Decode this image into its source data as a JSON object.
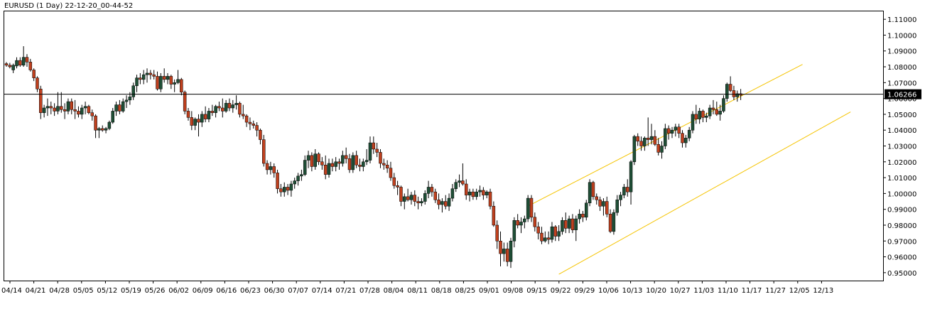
{
  "window": {
    "title": "EURUSD (1 Day) 22-12-20_00-44-52"
  },
  "colors": {
    "bull": "#1f4f36",
    "bear": "#c0401e",
    "wick": "#000000",
    "channel": "#f5c400",
    "hline": "#000000",
    "price_tag_bg": "#000000",
    "background": "#ffffff"
  },
  "chart_data": {
    "type": "candlestick",
    "symbol": "EURUSD",
    "timeframe": "1 Day",
    "ylim": [
      0.945,
      1.115
    ],
    "y_ticks": [
      "1.11000",
      "1.10000",
      "1.09000",
      "1.08000",
      "1.07000",
      "1.06000",
      "1.05000",
      "1.04000",
      "1.03000",
      "1.02000",
      "1.01000",
      "1.00000",
      "0.99000",
      "0.98000",
      "0.97000",
      "0.96000",
      "0.95000"
    ],
    "current_price": "1.06266",
    "current_price_value": 1.06266,
    "x_tick_labels": [
      "04/14",
      "04/21",
      "04/28",
      "05/05",
      "05/12",
      "05/19",
      "05/26",
      "06/02",
      "06/09",
      "06/16",
      "06/23",
      "06/30",
      "07/07",
      "07/14",
      "07/21",
      "07/28",
      "08/04",
      "08/11",
      "08/18",
      "08/25",
      "09/01",
      "09/08",
      "09/15",
      "09/22",
      "09/29",
      "10/06",
      "10/13",
      "10/20",
      "10/27",
      "11/03",
      "11/10",
      "11/17",
      "11/27",
      "12/05",
      "12/13"
    ],
    "channel_lines": [
      {
        "name": "upper",
        "from": {
          "bar": 152,
          "price": 0.992
        },
        "to": {
          "bar": 232,
          "price": 1.0815
        }
      },
      {
        "name": "lower",
        "from": {
          "bar": 161,
          "price": 0.949
        },
        "to": {
          "bar": 246,
          "price": 1.0515
        }
      }
    ],
    "candles": [
      [
        1.082,
        1.083,
        1.08,
        1.081
      ],
      [
        1.081,
        1.0825,
        1.079,
        1.08
      ],
      [
        1.078,
        1.082,
        1.076,
        1.081
      ],
      [
        1.0805,
        1.086,
        1.079,
        1.084
      ],
      [
        1.084,
        1.086,
        1.08,
        1.081
      ],
      [
        1.081,
        1.093,
        1.08,
        1.086
      ],
      [
        1.086,
        1.088,
        1.08,
        1.083
      ],
      [
        1.083,
        1.085,
        1.077,
        1.078
      ],
      [
        1.078,
        1.079,
        1.071,
        1.073
      ],
      [
        1.073,
        1.074,
        1.064,
        1.066
      ],
      [
        1.066,
        1.068,
        1.047,
        1.051
      ],
      [
        1.051,
        1.056,
        1.048,
        1.054
      ],
      [
        1.054,
        1.06,
        1.049,
        1.055
      ],
      [
        1.055,
        1.058,
        1.05,
        1.054
      ],
      [
        1.054,
        1.057,
        1.049,
        1.052
      ],
      [
        1.052,
        1.064,
        1.05,
        1.055
      ],
      [
        1.055,
        1.064,
        1.051,
        1.053
      ],
      [
        1.053,
        1.057,
        1.047,
        1.052
      ],
      [
        1.052,
        1.06,
        1.05,
        1.058
      ],
      [
        1.058,
        1.06,
        1.05,
        1.053
      ],
      [
        1.053,
        1.059,
        1.047,
        1.052
      ],
      [
        1.052,
        1.055,
        1.048,
        1.05
      ],
      [
        1.05,
        1.056,
        1.047,
        1.054
      ],
      [
        1.054,
        1.058,
        1.05,
        1.055
      ],
      [
        1.055,
        1.056,
        1.05,
        1.051
      ],
      [
        1.051,
        1.053,
        1.046,
        1.049
      ],
      [
        1.049,
        1.05,
        1.035,
        1.04
      ],
      [
        1.04,
        1.042,
        1.035,
        1.041
      ],
      [
        1.041,
        1.043,
        1.039,
        1.04
      ],
      [
        1.04,
        1.042,
        1.038,
        1.041
      ],
      [
        1.041,
        1.046,
        1.04,
        1.045
      ],
      [
        1.045,
        1.054,
        1.044,
        1.052
      ],
      [
        1.052,
        1.058,
        1.049,
        1.056
      ],
      [
        1.056,
        1.059,
        1.05,
        1.052
      ],
      [
        1.052,
        1.06,
        1.051,
        1.058
      ],
      [
        1.058,
        1.062,
        1.054,
        1.059
      ],
      [
        1.059,
        1.064,
        1.056,
        1.061
      ],
      [
        1.061,
        1.07,
        1.059,
        1.068
      ],
      [
        1.068,
        1.075,
        1.064,
        1.073
      ],
      [
        1.073,
        1.076,
        1.069,
        1.072
      ],
      [
        1.072,
        1.078,
        1.069,
        1.075
      ],
      [
        1.075,
        1.079,
        1.07,
        1.076
      ],
      [
        1.076,
        1.078,
        1.072,
        1.075
      ],
      [
        1.075,
        1.078,
        1.072,
        1.074
      ],
      [
        1.074,
        1.077,
        1.065,
        1.066
      ],
      [
        1.066,
        1.076,
        1.064,
        1.074
      ],
      [
        1.074,
        1.079,
        1.07,
        1.072
      ],
      [
        1.072,
        1.076,
        1.069,
        1.074
      ],
      [
        1.074,
        1.075,
        1.066,
        1.069
      ],
      [
        1.069,
        1.072,
        1.064,
        1.07
      ],
      [
        1.07,
        1.078,
        1.069,
        1.072
      ],
      [
        1.072,
        1.073,
        1.062,
        1.064
      ],
      [
        1.064,
        1.065,
        1.05,
        1.052
      ],
      [
        1.052,
        1.054,
        1.046,
        1.048
      ],
      [
        1.048,
        1.052,
        1.04,
        1.043
      ],
      [
        1.043,
        1.048,
        1.04,
        1.047
      ],
      [
        1.047,
        1.05,
        1.036,
        1.045
      ],
      [
        1.045,
        1.052,
        1.042,
        1.05
      ],
      [
        1.05,
        1.055,
        1.045,
        1.047
      ],
      [
        1.047,
        1.054,
        1.045,
        1.052
      ],
      [
        1.052,
        1.056,
        1.049,
        1.051
      ],
      [
        1.051,
        1.056,
        1.048,
        1.055
      ],
      [
        1.055,
        1.058,
        1.052,
        1.054
      ],
      [
        1.054,
        1.06,
        1.048,
        1.052
      ],
      [
        1.052,
        1.059,
        1.051,
        1.057
      ],
      [
        1.057,
        1.06,
        1.052,
        1.054
      ],
      [
        1.054,
        1.059,
        1.051,
        1.056
      ],
      [
        1.056,
        1.062,
        1.053,
        1.057
      ],
      [
        1.057,
        1.058,
        1.048,
        1.05
      ],
      [
        1.05,
        1.056,
        1.047,
        1.049
      ],
      [
        1.049,
        1.05,
        1.042,
        1.045
      ],
      [
        1.045,
        1.048,
        1.04,
        1.044
      ],
      [
        1.044,
        1.046,
        1.041,
        1.043
      ],
      [
        1.043,
        1.045,
        1.036,
        1.04
      ],
      [
        1.04,
        1.041,
        1.031,
        1.034
      ],
      [
        1.034,
        1.037,
        1.017,
        1.019
      ],
      [
        1.019,
        1.021,
        1.012,
        1.015
      ],
      [
        1.015,
        1.02,
        1.012,
        1.017
      ],
      [
        1.017,
        1.019,
        1.01,
        1.013
      ],
      [
        1.013,
        1.015,
        1.0,
        1.003
      ],
      [
        1.003,
        1.006,
        0.998,
        1.001
      ],
      [
        1.001,
        1.007,
        0.998,
        1.004
      ],
      [
        1.004,
        1.006,
        0.999,
        1.002
      ],
      [
        1.002,
        1.008,
        0.998,
        1.006
      ],
      [
        1.006,
        1.01,
        1.003,
        1.008
      ],
      [
        1.008,
        1.013,
        1.005,
        1.011
      ],
      [
        1.011,
        1.015,
        1.008,
        1.012
      ],
      [
        1.012,
        1.024,
        1.011,
        1.021
      ],
      [
        1.021,
        1.027,
        1.016,
        1.024
      ],
      [
        1.024,
        1.026,
        1.014,
        1.017
      ],
      [
        1.017,
        1.028,
        1.015,
        1.025
      ],
      [
        1.025,
        1.026,
        1.018,
        1.02
      ],
      [
        1.02,
        1.023,
        1.015,
        1.018
      ],
      [
        1.018,
        1.024,
        1.009,
        1.012
      ],
      [
        1.012,
        1.022,
        1.01,
        1.019
      ],
      [
        1.019,
        1.022,
        1.014,
        1.017
      ],
      [
        1.017,
        1.023,
        1.014,
        1.02
      ],
      [
        1.02,
        1.022,
        1.015,
        1.019
      ],
      [
        1.019,
        1.027,
        1.017,
        1.024
      ],
      [
        1.024,
        1.029,
        1.019,
        1.022
      ],
      [
        1.022,
        1.025,
        1.013,
        1.015
      ],
      [
        1.015,
        1.026,
        1.013,
        1.024
      ],
      [
        1.024,
        1.027,
        1.016,
        1.018
      ],
      [
        1.018,
        1.022,
        1.014,
        1.017
      ],
      [
        1.017,
        1.022,
        1.014,
        1.02
      ],
      [
        1.02,
        1.028,
        1.018,
        1.021
      ],
      [
        1.021,
        1.036,
        1.019,
        1.032
      ],
      [
        1.032,
        1.036,
        1.025,
        1.028
      ],
      [
        1.028,
        1.032,
        1.023,
        1.026
      ],
      [
        1.026,
        1.028,
        1.016,
        1.019
      ],
      [
        1.019,
        1.022,
        1.015,
        1.018
      ],
      [
        1.018,
        1.021,
        1.013,
        1.016
      ],
      [
        1.016,
        1.02,
        1.008,
        1.01
      ],
      [
        1.01,
        1.013,
        1.003,
        1.005
      ],
      [
        1.005,
        1.008,
        0.999,
        1.004
      ],
      [
        1.004,
        1.005,
        0.992,
        0.995
      ],
      [
        0.995,
        1.0,
        0.99,
        0.998
      ],
      [
        0.998,
        1.003,
        0.995,
        0.996
      ],
      [
        0.996,
        1.001,
        0.993,
        0.999
      ],
      [
        0.999,
        1.002,
        0.992,
        0.995
      ],
      [
        0.995,
        0.998,
        0.99,
        0.994
      ],
      [
        0.994,
        0.997,
        0.992,
        0.995
      ],
      [
        0.995,
        1.002,
        0.993,
        1.0
      ],
      [
        1.0,
        1.008,
        0.997,
        1.004
      ],
      [
        1.004,
        1.006,
        0.998,
        1.001
      ],
      [
        1.001,
        1.003,
        0.994,
        0.996
      ],
      [
        0.996,
        1.0,
        0.99,
        0.993
      ],
      [
        0.993,
        0.997,
        0.988,
        0.995
      ],
      [
        0.995,
        0.999,
        0.99,
        0.992
      ],
      [
        0.992,
        1.0,
        0.989,
        0.997
      ],
      [
        0.997,
        1.006,
        0.995,
        1.003
      ],
      [
        1.003,
        1.009,
        1.001,
        1.007
      ],
      [
        1.007,
        1.012,
        1.004,
        1.008
      ],
      [
        1.008,
        1.019,
        1.005,
        1.006
      ],
      [
        1.006,
        1.009,
        0.996,
        0.999
      ],
      [
        0.999,
        1.003,
        0.995,
        1.001
      ],
      [
        1.001,
        1.003,
        0.996,
        0.998
      ],
      [
        0.998,
        1.003,
        0.996,
        1.001
      ],
      [
        1.001,
        1.005,
        0.998,
        1.002
      ],
      [
        1.002,
        1.004,
        0.996,
        0.999
      ],
      [
        0.999,
        1.002,
        0.997,
        1.001
      ],
      [
        1.001,
        1.003,
        0.99,
        0.992
      ],
      [
        0.992,
        0.995,
        0.979,
        0.98
      ],
      [
        0.98,
        0.983,
        0.965,
        0.97
      ],
      [
        0.97,
        0.976,
        0.954,
        0.962
      ],
      [
        0.962,
        0.969,
        0.957,
        0.965
      ],
      [
        0.965,
        0.969,
        0.954,
        0.957
      ],
      [
        0.957,
        0.972,
        0.953,
        0.97
      ],
      [
        0.97,
        0.985,
        0.966,
        0.983
      ],
      [
        0.983,
        0.987,
        0.978,
        0.98
      ],
      [
        0.98,
        0.985,
        0.975,
        0.982
      ],
      [
        0.982,
        0.986,
        0.978,
        0.984
      ],
      [
        0.984,
        0.999,
        0.982,
        0.997
      ],
      [
        0.997,
        0.999,
        0.982,
        0.985
      ],
      [
        0.985,
        0.988,
        0.976,
        0.979
      ],
      [
        0.979,
        0.982,
        0.971,
        0.975
      ],
      [
        0.975,
        0.979,
        0.968,
        0.97
      ],
      [
        0.97,
        0.976,
        0.969,
        0.972
      ],
      [
        0.972,
        0.976,
        0.968,
        0.971
      ],
      [
        0.971,
        0.982,
        0.969,
        0.979
      ],
      [
        0.979,
        0.98,
        0.97,
        0.973
      ],
      [
        0.973,
        0.98,
        0.97,
        0.976
      ],
      [
        0.976,
        0.985,
        0.974,
        0.983
      ],
      [
        0.983,
        0.988,
        0.975,
        0.978
      ],
      [
        0.978,
        0.986,
        0.975,
        0.984
      ],
      [
        0.984,
        0.987,
        0.975,
        0.977
      ],
      [
        0.977,
        0.986,
        0.97,
        0.984
      ],
      [
        0.984,
        0.99,
        0.981,
        0.987
      ],
      [
        0.987,
        0.989,
        0.982,
        0.985
      ],
      [
        0.985,
        0.996,
        0.983,
        0.994
      ],
      [
        0.994,
        1.009,
        0.992,
        1.007
      ],
      [
        1.007,
        1.008,
        0.996,
        0.998
      ],
      [
        0.998,
        1.0,
        0.993,
        0.996
      ],
      [
        0.996,
        0.998,
        0.989,
        0.992
      ],
      [
        0.992,
        0.997,
        0.986,
        0.995
      ],
      [
        0.995,
        0.998,
        0.985,
        0.987
      ],
      [
        0.987,
        0.99,
        0.975,
        0.976
      ],
      [
        0.976,
        0.99,
        0.974,
        0.988
      ],
      [
        0.988,
        0.999,
        0.986,
        0.996
      ],
      [
        0.996,
        1.001,
        0.992,
        0.999
      ],
      [
        0.999,
        1.006,
        0.997,
        1.004
      ],
      [
        1.004,
        1.009,
        0.998,
        1.001
      ],
      [
        1.001,
        1.021,
        0.993,
        1.02
      ],
      [
        1.02,
        1.037,
        1.018,
        1.036
      ],
      [
        1.036,
        1.038,
        1.03,
        1.033
      ],
      [
        1.033,
        1.036,
        1.027,
        1.03
      ],
      [
        1.03,
        1.036,
        1.027,
        1.035
      ],
      [
        1.035,
        1.048,
        1.03,
        1.034
      ],
      [
        1.034,
        1.044,
        1.031,
        1.036
      ],
      [
        1.036,
        1.04,
        1.03,
        1.031
      ],
      [
        1.031,
        1.035,
        1.024,
        1.026
      ],
      [
        1.026,
        1.033,
        1.022,
        1.03
      ],
      [
        1.03,
        1.044,
        1.028,
        1.041
      ],
      [
        1.041,
        1.043,
        1.034,
        1.038
      ],
      [
        1.038,
        1.042,
        1.035,
        1.04
      ],
      [
        1.04,
        1.044,
        1.036,
        1.042
      ],
      [
        1.042,
        1.044,
        1.035,
        1.038
      ],
      [
        1.038,
        1.04,
        1.029,
        1.032
      ],
      [
        1.032,
        1.037,
        1.029,
        1.035
      ],
      [
        1.035,
        1.042,
        1.033,
        1.04
      ],
      [
        1.04,
        1.052,
        1.038,
        1.05
      ],
      [
        1.05,
        1.056,
        1.044,
        1.047
      ],
      [
        1.047,
        1.054,
        1.044,
        1.052
      ],
      [
        1.052,
        1.053,
        1.045,
        1.048
      ],
      [
        1.048,
        1.051,
        1.045,
        1.049
      ],
      [
        1.049,
        1.056,
        1.047,
        1.054
      ],
      [
        1.054,
        1.059,
        1.05,
        1.053
      ],
      [
        1.053,
        1.058,
        1.049,
        1.05
      ],
      [
        1.05,
        1.056,
        1.046,
        1.052
      ],
      [
        1.052,
        1.062,
        1.051,
        1.06
      ],
      [
        1.06,
        1.07,
        1.058,
        1.069
      ],
      [
        1.069,
        1.074,
        1.064,
        1.065
      ],
      [
        1.065,
        1.068,
        1.059,
        1.061
      ],
      [
        1.061,
        1.065,
        1.058,
        1.063
      ],
      [
        1.063,
        1.066,
        1.059,
        1.062
      ]
    ]
  }
}
